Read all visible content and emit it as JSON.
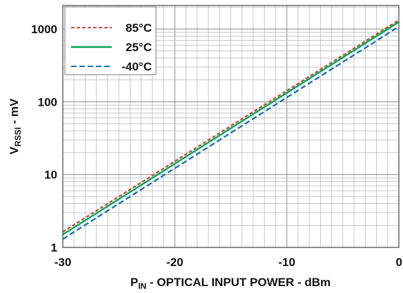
{
  "chart_data": {
    "type": "line",
    "title": "",
    "xlabel": {
      "main": "P",
      "sub": "IN",
      "rest": " - OPTICAL INPUT POWER - dBm"
    },
    "ylabel": {
      "main": "V",
      "sub": "RSSI",
      "rest": " - mV"
    },
    "xlim": [
      -30,
      0
    ],
    "ylim": [
      1,
      2000
    ],
    "yscale": "log",
    "grid": true,
    "legend_position": "top-left",
    "x_ticks": [
      -30,
      -20,
      -10,
      0
    ],
    "x_tick_labels": [
      "-30",
      "-20",
      "-10",
      "0"
    ],
    "y_ticks": [
      1,
      10,
      100,
      1000
    ],
    "y_tick_labels": [
      "1",
      "10",
      "100",
      "1000"
    ],
    "series": [
      {
        "name": "85°C",
        "color": "#c0504d",
        "dash": "dashed",
        "x": [
          -30,
          0
        ],
        "y": [
          1.63,
          1330
        ]
      },
      {
        "name": "25°C",
        "color": "#00a651",
        "dash": "solid",
        "x": [
          -30,
          0
        ],
        "y": [
          1.5,
          1250
        ]
      },
      {
        "name": "-40°C",
        "color": "#1f6fb4",
        "dash": "dashed",
        "x": [
          -30,
          0
        ],
        "y": [
          1.3,
          1080
        ]
      }
    ]
  }
}
